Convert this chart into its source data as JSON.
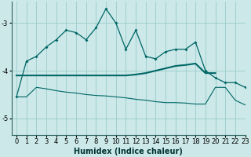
{
  "xlabel": "Humidex (Indice chaleur)",
  "background_color": "#cce8e8",
  "grid_color": "#99cccc",
  "line_color": "#006666",
  "xlim": [
    -0.5,
    23
  ],
  "ylim": [
    -5.35,
    -2.55
  ],
  "yticks": [
    -5,
    -4,
    -3
  ],
  "xticks": [
    0,
    1,
    2,
    3,
    4,
    5,
    6,
    7,
    8,
    9,
    10,
    11,
    12,
    13,
    14,
    15,
    16,
    17,
    18,
    19,
    20,
    21,
    22,
    23
  ],
  "line1_x": [
    0,
    1,
    2,
    3,
    4,
    5,
    6,
    7,
    8,
    9,
    10,
    11,
    12,
    13,
    14,
    15,
    16,
    17,
    18,
    19,
    20,
    21,
    22,
    23
  ],
  "line1_y": [
    -4.55,
    -3.8,
    -3.7,
    -3.5,
    -3.35,
    -3.15,
    -3.2,
    -3.35,
    -3.1,
    -2.7,
    -3.0,
    -3.55,
    -3.15,
    -3.7,
    -3.75,
    -3.6,
    -3.55,
    -3.55,
    -3.4,
    -4.0,
    -4.15,
    -4.25,
    -4.25,
    -4.35
  ],
  "line2_x": [
    0,
    2,
    3,
    4,
    5,
    6,
    7,
    8,
    9,
    10,
    11,
    12,
    13,
    14,
    15,
    16,
    17,
    18,
    19,
    20
  ],
  "line2_y": [
    -4.1,
    -4.1,
    -4.1,
    -4.1,
    -4.1,
    -4.1,
    -4.1,
    -4.1,
    -4.1,
    -4.1,
    -4.1,
    -4.08,
    -4.05,
    -4.0,
    -3.95,
    -3.9,
    -3.88,
    -3.85,
    -4.05,
    -4.05
  ],
  "line3_x": [
    0,
    1,
    2,
    3,
    4,
    5,
    6,
    7,
    8,
    9,
    10,
    11,
    12,
    13,
    14,
    15,
    16,
    17,
    18,
    19,
    20,
    21,
    22,
    23
  ],
  "line3_y": [
    -4.55,
    -4.55,
    -4.35,
    -4.38,
    -4.42,
    -4.45,
    -4.47,
    -4.5,
    -4.52,
    -4.53,
    -4.55,
    -4.57,
    -4.6,
    -4.62,
    -4.65,
    -4.67,
    -4.67,
    -4.68,
    -4.7,
    -4.7,
    -4.35,
    -4.35,
    -4.62,
    -4.72
  ]
}
